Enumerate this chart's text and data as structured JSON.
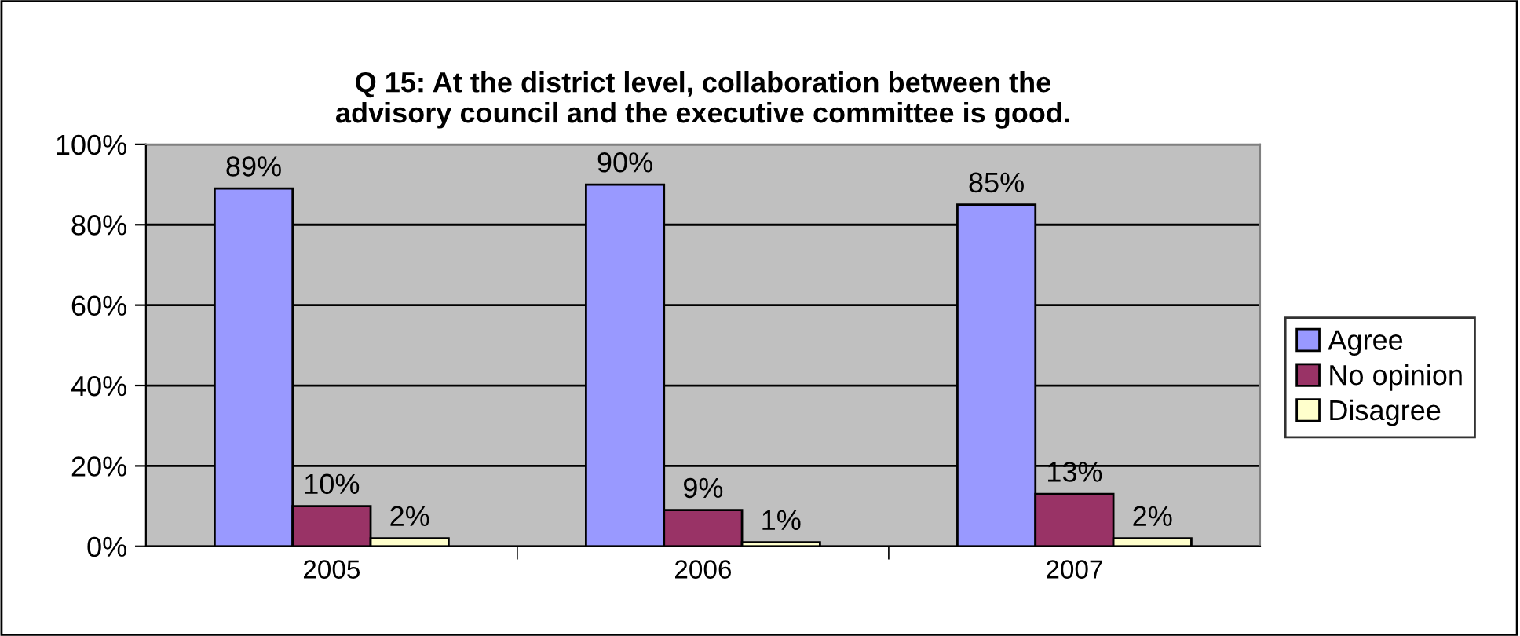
{
  "chart_data": {
    "type": "bar",
    "title": "Q 15: At the district level, collaboration between the\nadvisory council and the executive committee is good.",
    "categories": [
      "2005",
      "2006",
      "2007"
    ],
    "series": [
      {
        "name": "Agree",
        "color": "#9999ff",
        "values": [
          89,
          90,
          85
        ],
        "value_labels": [
          "89%",
          "90%",
          "85%"
        ]
      },
      {
        "name": "No opinion",
        "color": "#993366",
        "values": [
          10,
          9,
          13
        ],
        "value_labels": [
          "10%",
          "9%",
          "13%"
        ]
      },
      {
        "name": "Disagree",
        "color": "#ffffcc",
        "values": [
          2,
          1,
          2
        ],
        "value_labels": [
          "2%",
          "1%",
          "2%"
        ]
      }
    ],
    "ylim": [
      0,
      100
    ],
    "yticks": [
      {
        "value": 0,
        "label": "0%"
      },
      {
        "value": 20,
        "label": "20%"
      },
      {
        "value": 40,
        "label": "40%"
      },
      {
        "value": 60,
        "label": "60%"
      },
      {
        "value": 80,
        "label": "80%"
      },
      {
        "value": 100,
        "label": "100%"
      }
    ],
    "grid": "y",
    "legend": "right"
  }
}
